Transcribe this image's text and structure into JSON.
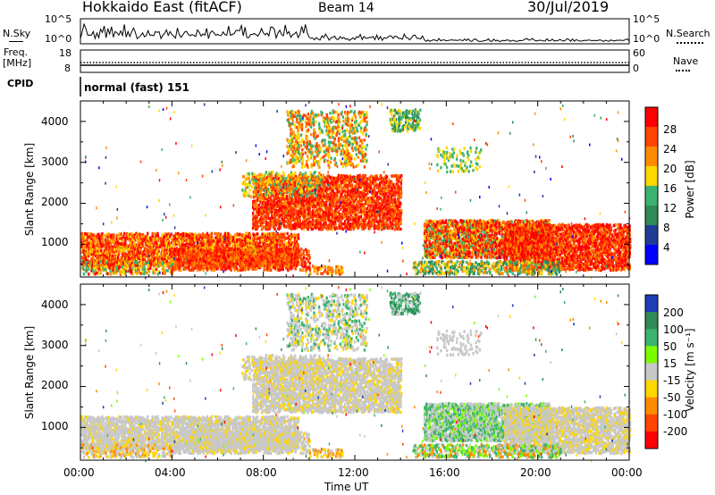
{
  "header": {
    "title": "Hokkaido East (fitACF)",
    "beam": "Beam 14",
    "date": "30/Jul/2019"
  },
  "strip_panels": {
    "nsky_label": "N.Sky",
    "nsearch_label": "N.Search",
    "left_ticks_top": [
      "10^5",
      "10^0"
    ],
    "right_ticks_top": [
      "10^5",
      "10^0"
    ],
    "freq_label_1": "Freq.",
    "freq_label_2": "[MHz]",
    "freq_ticks": [
      "18",
      "8"
    ],
    "nave_ticks": [
      "60",
      "0"
    ],
    "nave_label": "Nave",
    "cpid_label": "CPID",
    "cpid_text": "normal (fast) 151"
  },
  "chart_data": [
    {
      "type": "heatmap",
      "name_panel": "power",
      "ylabel": "Slant Range [km]",
      "yticks": [
        "4000",
        "3000",
        "2000",
        "1000"
      ],
      "ylim": [
        200,
        4500
      ],
      "xlim": [
        0,
        24
      ],
      "colorbar_label": "Power [dB]",
      "colorbar_ticks": [
        "28",
        "24",
        "20",
        "16",
        "12",
        "8",
        "4"
      ],
      "colorbar_colors": [
        "#ff0000",
        "#ff4500",
        "#ff8c00",
        "#ffd700",
        "#3cb371",
        "#2e8b57",
        "#1e3c96",
        "#0000ff"
      ]
    },
    {
      "type": "heatmap",
      "name_panel": "velocity",
      "ylabel": "Slant Range [km]",
      "yticks": [
        "4000",
        "3000",
        "2000",
        "1000"
      ],
      "ylim": [
        200,
        4500
      ],
      "xlim": [
        0,
        24
      ],
      "xlabel": "Time UT",
      "xticks": [
        "00:00",
        "04:00",
        "08:00",
        "12:00",
        "16:00",
        "20:00",
        "00:00"
      ],
      "colorbar_label": "Velocity [m s⁻¹]",
      "colorbar_ticks": [
        "200",
        "100",
        "50",
        "15",
        "-15",
        "-50",
        "-100",
        "-200"
      ],
      "colorbar_colors": [
        "#1e3cb4",
        "#2e8b57",
        "#3cb371",
        "#7cfc00",
        "#c8c8c8",
        "#ffd700",
        "#ff8c00",
        "#ff4500",
        "#ff0000"
      ]
    }
  ]
}
